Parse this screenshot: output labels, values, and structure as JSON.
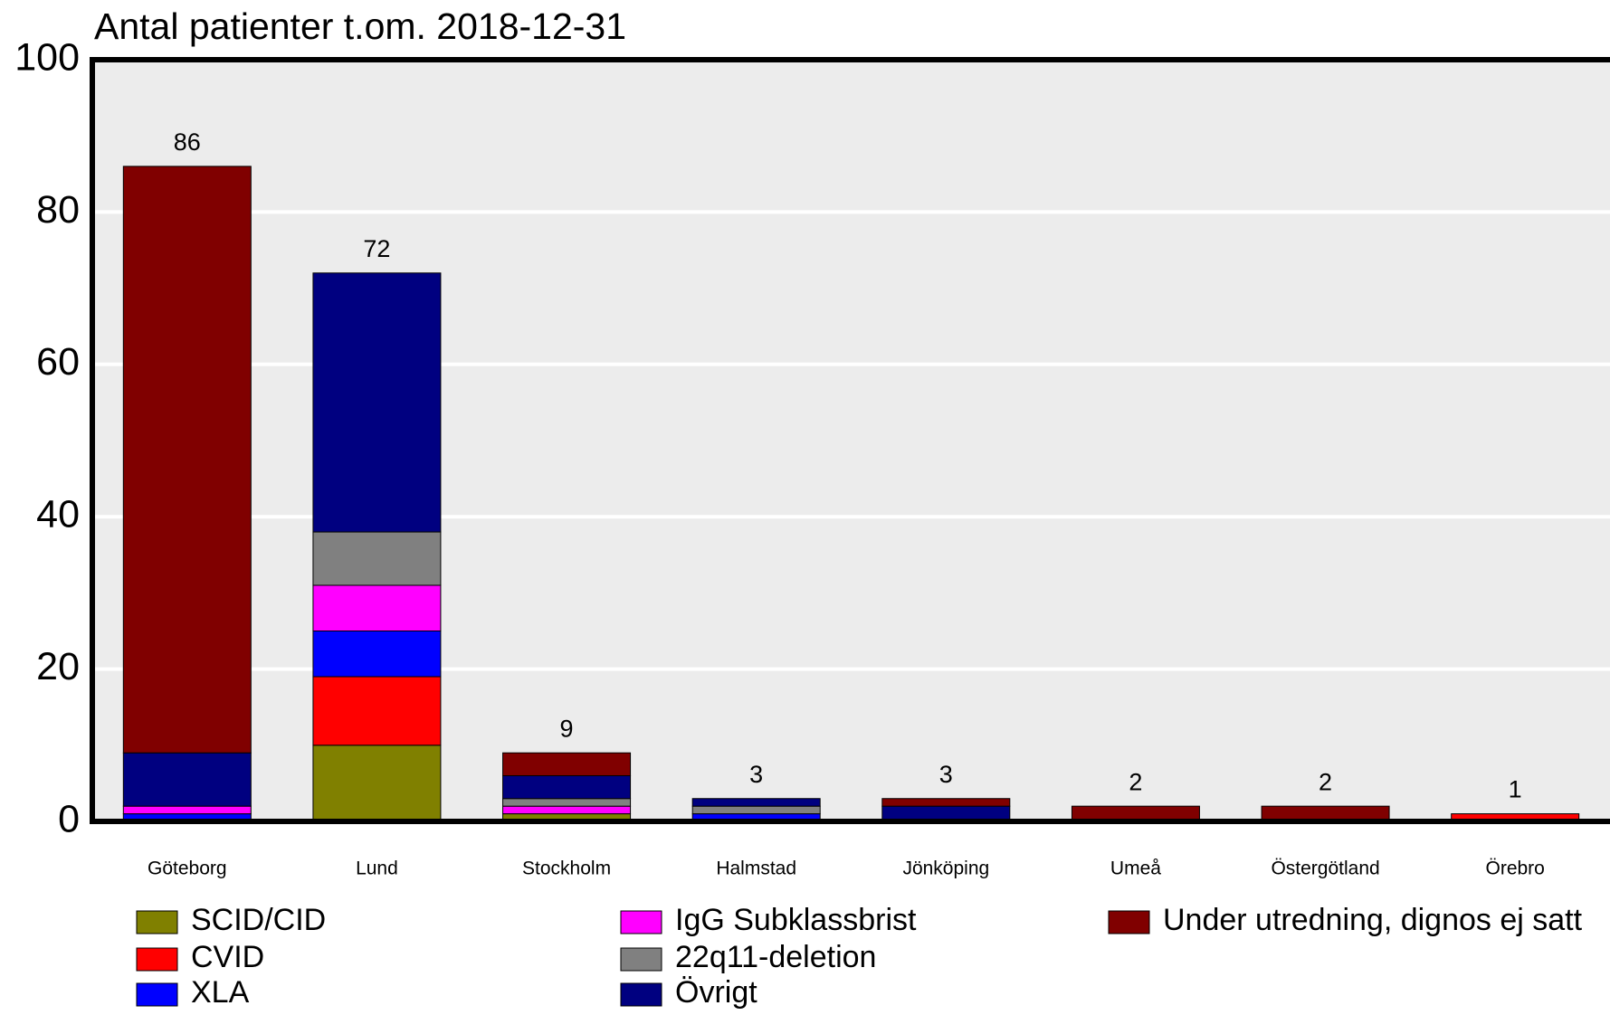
{
  "chart_data": {
    "type": "stacked-bar",
    "title": "Antal patienter t.om. 2018-12-31",
    "categories": [
      "Göteborg",
      "Lund",
      "Stockholm",
      "Halmstad",
      "Jönköping",
      "Umeå",
      "Östergötland",
      "Örebro"
    ],
    "series": [
      {
        "name": "SCID/CID",
        "color": "#808000",
        "values": [
          0,
          10,
          1,
          0,
          0,
          0,
          0,
          0
        ]
      },
      {
        "name": "CVID",
        "color": "#ff0000",
        "values": [
          0,
          9,
          0,
          0,
          0,
          0,
          0,
          1
        ]
      },
      {
        "name": "XLA",
        "color": "#0000ff",
        "values": [
          1,
          6,
          0,
          1,
          0,
          0,
          0,
          0
        ]
      },
      {
        "name": "IgG Subklassbrist",
        "color": "#ff00ff",
        "values": [
          1,
          6,
          1,
          0,
          0,
          0,
          0,
          0
        ]
      },
      {
        "name": "22q11-deletion",
        "color": "#808080",
        "values": [
          0,
          7,
          1,
          1,
          0,
          0,
          0,
          0
        ]
      },
      {
        "name": "Övrigt",
        "color": "#000080",
        "values": [
          7,
          34,
          3,
          1,
          2,
          0,
          0,
          0
        ]
      },
      {
        "name": "Under utredning, dignos ej satt",
        "color": "#800000",
        "values": [
          77,
          0,
          3,
          0,
          1,
          2,
          2,
          0
        ]
      }
    ],
    "totals": [
      86,
      72,
      9,
      3,
      3,
      2,
      2,
      1
    ],
    "ylim": [
      0,
      100
    ],
    "yticks": [
      0,
      20,
      40,
      60,
      80,
      100
    ],
    "grid": true
  }
}
